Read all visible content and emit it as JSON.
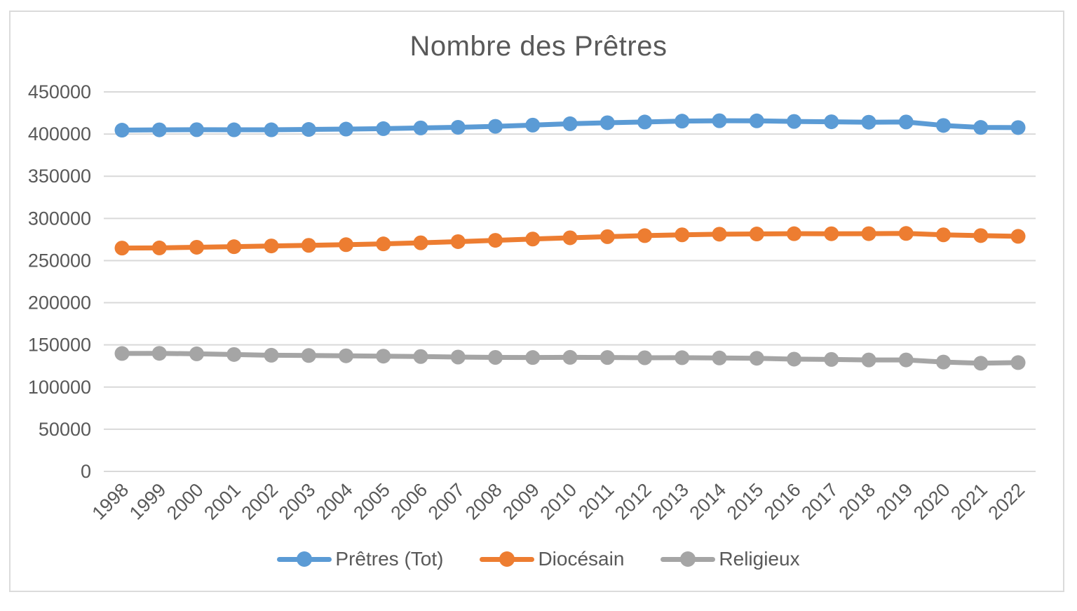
{
  "frame": {
    "background": "#FFFFFF",
    "border_color": "#DBDBDB"
  },
  "chart_data": {
    "type": "line",
    "title": "Nombre des Prêtres",
    "x": [
      1998,
      1999,
      2000,
      2001,
      2002,
      2003,
      2004,
      2005,
      2006,
      2007,
      2008,
      2009,
      2010,
      2011,
      2012,
      2013,
      2014,
      2015,
      2016,
      2017,
      2018,
      2019,
      2020,
      2021,
      2022
    ],
    "series": [
      {
        "name": "Prêtres (Tot)",
        "color": "#5B9BD5",
        "values": [
          404626,
          405009,
          405178,
          405067,
          405058,
          405450,
          405891,
          406411,
          407262,
          408024,
          409166,
          410593,
          412236,
          413418,
          414313,
          415348,
          415792,
          415656,
          414969,
          414582,
          414065,
          414336,
          410219,
          407872,
          407730
        ]
      },
      {
        "name": "Diocésain",
        "color": "#ED7D31",
        "values": [
          264824,
          265012,
          265781,
          266448,
          267334,
          268041,
          268837,
          269762,
          271053,
          272431,
          274007,
          275542,
          277009,
          278346,
          279561,
          280532,
          281297,
          281514,
          281831,
          281810,
          281910,
          282136,
          280521,
          279610,
          278742
        ]
      },
      {
        "name": "Religieux",
        "color": "#A5A5A5",
        "values": [
          139802,
          139997,
          139397,
          138619,
          137724,
          137409,
          137054,
          136649,
          136209,
          135593,
          135159,
          135051,
          135227,
          135072,
          134752,
          134816,
          134495,
          134142,
          133138,
          132772,
          132155,
          132200,
          129698,
          128262,
          128988
        ]
      }
    ],
    "ylim": [
      0,
      450000
    ],
    "yticks": [
      0,
      50000,
      100000,
      150000,
      200000,
      250000,
      300000,
      350000,
      400000,
      450000
    ],
    "xlabel": "",
    "ylabel": "",
    "grid": true,
    "grid_color": "#D9D9D9",
    "text_color": "#595959",
    "legend_position": "bottom"
  }
}
